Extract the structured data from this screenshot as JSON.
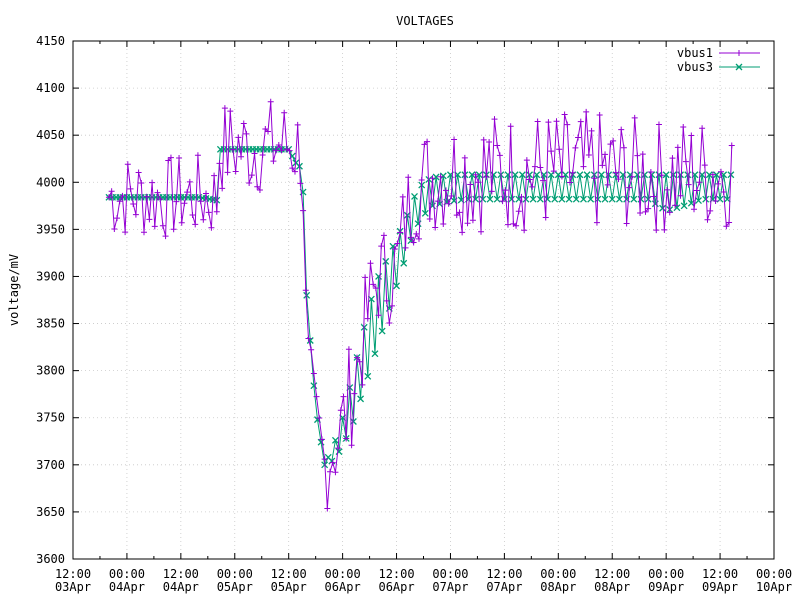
{
  "chart_data": {
    "type": "line",
    "title": "VOLTAGES",
    "ylabel": "voltage/mV",
    "xlabel": "",
    "ylim": [
      3600,
      4150
    ],
    "y_ticks": [
      3600,
      3650,
      3700,
      3750,
      3800,
      3850,
      3900,
      3950,
      4000,
      4050,
      4100,
      4150
    ],
    "xlim": [
      "2023-04-03T12:00",
      "2023-04-10T00:00"
    ],
    "x_ticks": [
      {
        "time": "12:00",
        "date": "03Apr"
      },
      {
        "time": "00:00",
        "date": "04Apr"
      },
      {
        "time": "12:00",
        "date": "04Apr"
      },
      {
        "time": "00:00",
        "date": "05Apr"
      },
      {
        "time": "12:00",
        "date": "05Apr"
      },
      {
        "time": "00:00",
        "date": "06Apr"
      },
      {
        "time": "12:00",
        "date": "06Apr"
      },
      {
        "time": "00:00",
        "date": "07Apr"
      },
      {
        "time": "12:00",
        "date": "07Apr"
      },
      {
        "time": "00:00",
        "date": "08Apr"
      },
      {
        "time": "12:00",
        "date": "08Apr"
      },
      {
        "time": "00:00",
        "date": "09Apr"
      },
      {
        "time": "12:00",
        "date": "09Apr"
      },
      {
        "time": "00:00",
        "date": "10Apr"
      }
    ],
    "grid": true,
    "legend_position": "top-right",
    "series": [
      {
        "name": "vbus1",
        "color": "#9400d3",
        "marker": "plus",
        "x": [
          "03Apr 20:00",
          "04Apr 00:00",
          "04Apr 04:00",
          "04Apr 08:00",
          "04Apr 12:00",
          "04Apr 16:00",
          "04Apr 20:00",
          "04Apr 20:30",
          "05Apr 00:00",
          "05Apr 04:00",
          "05Apr 08:00",
          "05Apr 12:00",
          "05Apr 15:00",
          "05Apr 16:00",
          "05Apr 18:00",
          "05Apr 20:00",
          "05Apr 22:00",
          "06Apr 00:00",
          "06Apr 02:00",
          "06Apr 04:00",
          "06Apr 06:00",
          "06Apr 08:00",
          "06Apr 10:00",
          "06Apr 12:00",
          "06Apr 14:00",
          "06Apr 16:00",
          "06Apr 18:00",
          "06Apr 20:00",
          "07Apr 00:00",
          "07Apr 04:00",
          "07Apr 08:00",
          "07Apr 12:00",
          "07Apr 16:00",
          "07Apr 20:00",
          "08Apr 00:00",
          "08Apr 04:00",
          "08Apr 08:00",
          "08Apr 12:00",
          "08Apr 16:00",
          "08Apr 20:00",
          "09Apr 00:00",
          "09Apr 04:00",
          "09Apr 08:00",
          "09Apr 12:00",
          "09Apr 15:00"
        ],
        "y": [
          3985,
          3985,
          3985,
          3983,
          3985,
          3985,
          3982,
          4035,
          4038,
          4035,
          4040,
          4040,
          4035,
          3820,
          3740,
          3700,
          3720,
          3740,
          3780,
          3820,
          3870,
          3900,
          3900,
          3910,
          3960,
          3990,
          4000,
          4005,
          4010,
          4010,
          4012,
          4010,
          4010,
          4012,
          4012,
          4010,
          4012,
          4010,
          4010,
          4008,
          4005,
          4010,
          4010,
          4010,
          4010
        ],
        "spread": [
          45,
          45,
          45,
          45,
          45,
          45,
          45,
          50,
          50,
          50,
          50,
          50,
          50,
          40,
          50,
          55,
          55,
          60,
          60,
          55,
          55,
          55,
          55,
          50,
          55,
          55,
          60,
          60,
          60,
          65,
          65,
          65,
          65,
          65,
          65,
          65,
          65,
          60,
          60,
          60,
          60,
          60,
          60,
          60,
          60
        ]
      },
      {
        "name": "vbus3",
        "color": "#009e73",
        "marker": "cross",
        "x": [
          "03Apr 20:00",
          "04Apr 00:00",
          "04Apr 04:00",
          "04Apr 08:00",
          "04Apr 12:00",
          "04Apr 16:00",
          "04Apr 20:00",
          "04Apr 20:30",
          "05Apr 00:00",
          "05Apr 04:00",
          "05Apr 08:00",
          "05Apr 12:00",
          "05Apr 14:00",
          "05Apr 15:00",
          "05Apr 16:00",
          "05Apr 18:00",
          "05Apr 20:00",
          "05Apr 22:00",
          "06Apr 00:00",
          "06Apr 02:00",
          "06Apr 04:00",
          "06Apr 06:00",
          "06Apr 08:00",
          "06Apr 10:00",
          "06Apr 12:00",
          "06Apr 14:00",
          "06Apr 16:00",
          "06Apr 18:00",
          "06Apr 20:00",
          "07Apr 00:00",
          "07Apr 04:00",
          "07Apr 08:00",
          "07Apr 12:00",
          "07Apr 16:00",
          "07Apr 20:00",
          "08Apr 00:00",
          "08Apr 04:00",
          "08Apr 08:00",
          "08Apr 12:00",
          "08Apr 16:00",
          "08Apr 20:00",
          "09Apr 00:00",
          "09Apr 04:00",
          "09Apr 08:00",
          "09Apr 12:00",
          "09Apr 15:00"
        ],
        "y": [
          3984,
          3984,
          3984,
          3984,
          3984,
          3984,
          3981,
          4035,
          4035,
          4035,
          4035,
          4035,
          4017,
          4017,
          3880,
          3760,
          3700,
          3720,
          3750,
          3790,
          3830,
          3870,
          3900,
          3920,
          3940,
          3960,
          3985,
          4000,
          4005,
          4008,
          4008,
          4008,
          4008,
          4008,
          4008,
          4008,
          4008,
          4008,
          4008,
          4008,
          4008,
          4008,
          4008,
          4008,
          4008,
          4008
        ],
        "lower": [
          3984,
          3984,
          3984,
          3984,
          3984,
          3984,
          3981,
          4035,
          4035,
          4035,
          4035,
          4035,
          4017,
          4017,
          3880,
          3760,
          3700,
          3705,
          3720,
          3740,
          3770,
          3800,
          3830,
          3860,
          3890,
          3920,
          3950,
          3965,
          3975,
          3980,
          3982,
          3982,
          3982,
          3982,
          3982,
          3982,
          3982,
          3982,
          3982,
          3982,
          3982,
          3970,
          3975,
          3982,
          3982,
          3982
        ]
      }
    ]
  }
}
